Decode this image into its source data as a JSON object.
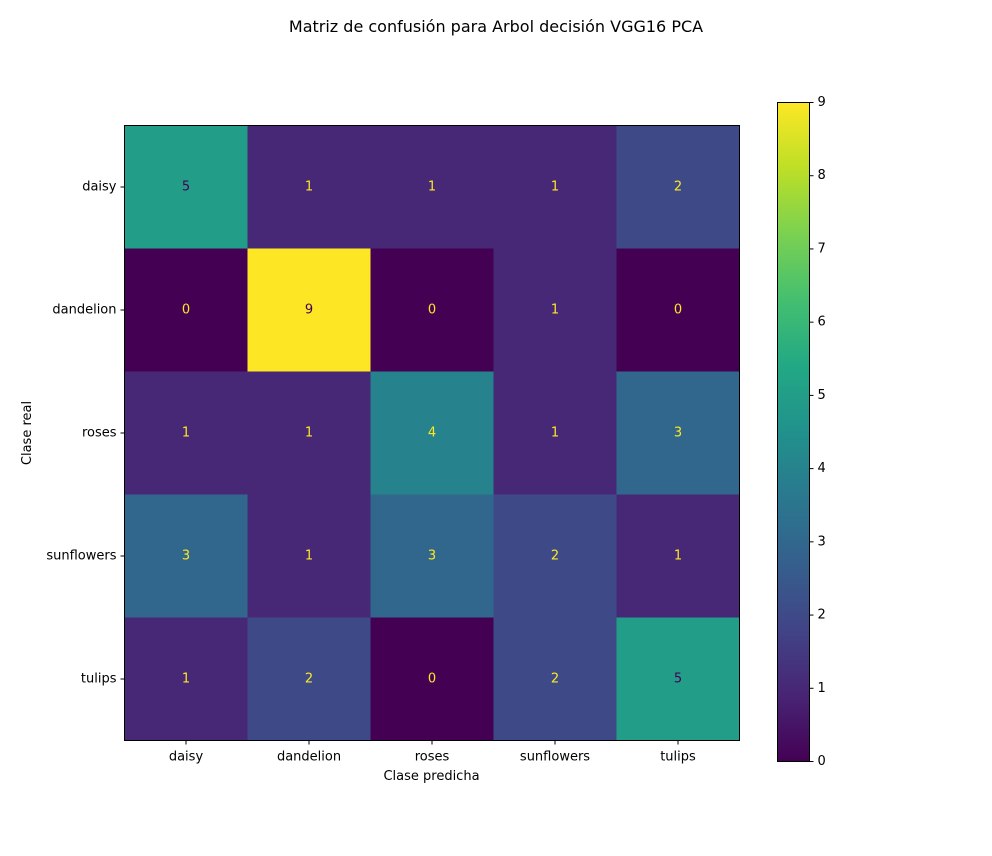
{
  "chart_data": {
    "type": "heatmap",
    "title": "Matriz de confusión para Arbol decisión VGG16 PCA",
    "xlabel": "Clase predicha",
    "ylabel": "Clase real",
    "x_categories": [
      "daisy",
      "dandelion",
      "roses",
      "sunflowers",
      "tulips"
    ],
    "y_categories": [
      "daisy",
      "dandelion",
      "roses",
      "sunflowers",
      "tulips"
    ],
    "values": [
      [
        5,
        1,
        1,
        1,
        2
      ],
      [
        0,
        9,
        0,
        1,
        0
      ],
      [
        1,
        1,
        4,
        1,
        3
      ],
      [
        3,
        1,
        3,
        2,
        1
      ],
      [
        1,
        2,
        0,
        2,
        5
      ]
    ],
    "colormap": "viridis",
    "colorbar": {
      "min": 0,
      "max": 9,
      "ticks": [
        "0",
        "1",
        "2",
        "3",
        "4",
        "5",
        "6",
        "7",
        "8",
        "9"
      ]
    },
    "label_colors": {
      "light": "#fde725",
      "dark": "#440154"
    },
    "grid": false
  }
}
